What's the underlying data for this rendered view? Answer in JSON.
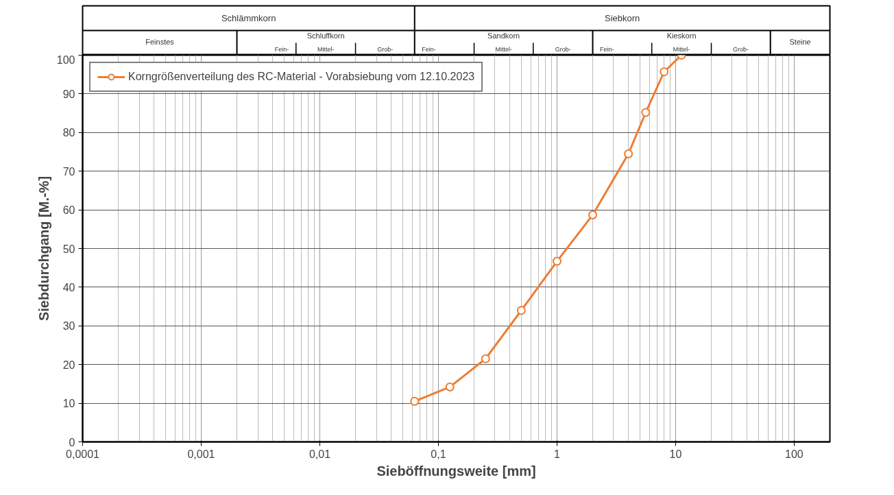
{
  "chart_data": {
    "type": "line",
    "xlabel": "Sieböffnungsweite [mm]",
    "ylabel": "Siebdurchgang [M.-%]",
    "x": [
      0.063,
      0.125,
      0.25,
      0.5,
      1,
      2,
      4,
      5.6,
      8,
      11.2
    ],
    "series": [
      {
        "name": "Korngrößenverteilung des RC-Material - Vorabsiebung vom 12.10.2023",
        "color": "#ed7d31",
        "values": [
          10.5,
          14.2,
          21.5,
          34,
          46.7,
          58.7,
          74.5,
          85.2,
          95.7,
          100
        ]
      }
    ],
    "log": "x",
    "xlim": [
      0.0001,
      200
    ],
    "ylim": [
      0,
      100
    ],
    "xticks": [
      {
        "value": 0.0001,
        "label": "0,0001"
      },
      {
        "value": 0.001,
        "label": "0,001"
      },
      {
        "value": 0.01,
        "label": "0,01"
      },
      {
        "value": 0.1,
        "label": "0,1"
      },
      1,
      10,
      100
    ],
    "yticks": [
      0,
      10,
      20,
      30,
      40,
      50,
      60,
      70,
      80,
      90,
      100
    ],
    "grid": true,
    "legend": "top left",
    "marker": "circle",
    "line_style": "solid",
    "annotations": [
      "Schlämmkorn",
      "Siebkorn",
      "Feinstes",
      "Schluffkorn",
      "Fein-",
      "Mittel-",
      "Grob-",
      "Sandkorn",
      "Fein-",
      "Mittel-",
      "Grob-",
      "Kieskorn",
      "Fein-",
      "Mittel-",
      "Grob-",
      "Steine"
    ]
  }
}
